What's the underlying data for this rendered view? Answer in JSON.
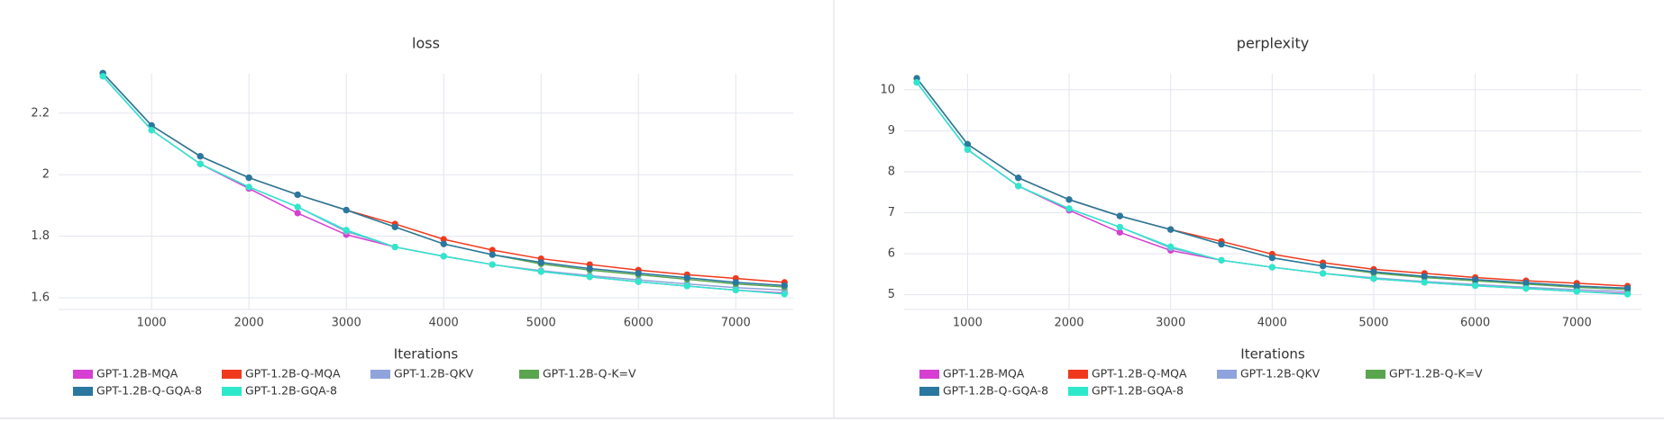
{
  "chart_data": [
    {
      "type": "line",
      "title": "loss",
      "x_label": "Iterations",
      "x": [
        500,
        1000,
        1500,
        2000,
        2500,
        3000,
        3500,
        4000,
        4500,
        5000,
        5500,
        6000,
        6500,
        7000,
        7500
      ],
      "xlim": [
        45,
        7590
      ],
      "ylim": [
        1.562,
        2.328
      ],
      "xticks": [
        1000,
        2000,
        3000,
        4000,
        5000,
        6000,
        7000
      ],
      "yticks": [
        1.6,
        1.8,
        2,
        2.2
      ],
      "grid": true,
      "series": [
        {
          "name": "GPT-1.2B-MQA",
          "color": "#d63fd1",
          "values": [
            2.32,
            2.145,
            2.035,
            1.955,
            1.875,
            1.805,
            1.765,
            1.735,
            1.708,
            1.685,
            1.668,
            1.652,
            1.638,
            1.625,
            1.615
          ]
        },
        {
          "name": "GPT-1.2B-Q-MQA",
          "color": "#f0391c",
          "values": [
            2.33,
            2.16,
            2.06,
            1.99,
            1.935,
            1.885,
            1.84,
            1.79,
            1.755,
            1.727,
            1.708,
            1.69,
            1.675,
            1.663,
            1.65
          ]
        },
        {
          "name": "GPT-1.2B-QKV",
          "color": "#8fa4dc",
          "values": [
            2.32,
            2.145,
            2.035,
            1.96,
            1.895,
            1.815,
            1.765,
            1.735,
            1.708,
            1.688,
            1.672,
            1.658,
            1.645,
            1.633,
            1.625
          ]
        },
        {
          "name": "GPT-1.2B-Q-K=V",
          "color": "#5aa64f",
          "values": [
            2.33,
            2.16,
            2.06,
            1.99,
            1.935,
            1.885,
            1.83,
            1.775,
            1.74,
            1.71,
            1.69,
            1.675,
            1.66,
            1.645,
            1.635
          ]
        },
        {
          "name": "GPT-1.2B-Q-GQA-8",
          "color": "#2a77a0",
          "values": [
            2.33,
            2.16,
            2.06,
            1.99,
            1.935,
            1.885,
            1.83,
            1.775,
            1.74,
            1.715,
            1.695,
            1.68,
            1.665,
            1.65,
            1.64
          ]
        },
        {
          "name": "GPT-1.2B-GQA-8",
          "color": "#2ee8cc",
          "values": [
            2.32,
            2.145,
            2.035,
            1.96,
            1.895,
            1.82,
            1.765,
            1.735,
            1.708,
            1.685,
            1.668,
            1.652,
            1.638,
            1.625,
            1.612
          ]
        }
      ]
    },
    {
      "type": "line",
      "title": "perplexity",
      "x_label": "Iterations",
      "x": [
        500,
        1000,
        1500,
        2000,
        2500,
        3000,
        3500,
        4000,
        4500,
        5000,
        5500,
        6000,
        6500,
        7000,
        7500
      ],
      "xlim": [
        375,
        7637
      ],
      "ylim": [
        4.64,
        10.39
      ],
      "xticks": [
        1000,
        2000,
        3000,
        4000,
        5000,
        6000,
        7000
      ],
      "yticks": [
        5,
        6,
        7,
        8,
        9,
        10
      ],
      "grid": true,
      "series": [
        {
          "name": "GPT-1.2B-MQA",
          "color": "#d63fd1",
          "values": [
            10.18,
            8.54,
            7.65,
            7.06,
            6.52,
            6.08,
            5.84,
            5.67,
            5.52,
            5.39,
            5.3,
            5.22,
            5.15,
            5.08,
            5.03
          ]
        },
        {
          "name": "GPT-1.2B-Q-MQA",
          "color": "#f0391c",
          "values": [
            10.28,
            8.67,
            7.85,
            7.32,
            6.92,
            6.59,
            6.3,
            5.99,
            5.78,
            5.62,
            5.52,
            5.42,
            5.34,
            5.28,
            5.21
          ]
        },
        {
          "name": "GPT-1.2B-QKV",
          "color": "#8fa4dc",
          "values": [
            10.18,
            8.54,
            7.65,
            7.1,
            6.65,
            6.14,
            5.84,
            5.67,
            5.52,
            5.41,
            5.32,
            5.25,
            5.18,
            5.12,
            5.08
          ]
        },
        {
          "name": "GPT-1.2B-Q-K=V",
          "color": "#5aa64f",
          "values": [
            10.28,
            8.67,
            7.85,
            7.32,
            6.92,
            6.59,
            6.23,
            5.9,
            5.7,
            5.53,
            5.42,
            5.34,
            5.26,
            5.18,
            5.13
          ]
        },
        {
          "name": "GPT-1.2B-Q-GQA-8",
          "color": "#2a77a0",
          "values": [
            10.28,
            8.67,
            7.85,
            7.32,
            6.92,
            6.59,
            6.23,
            5.9,
            5.7,
            5.56,
            5.45,
            5.37,
            5.29,
            5.21,
            5.16
          ]
        },
        {
          "name": "GPT-1.2B-GQA-8",
          "color": "#2ee8cc",
          "values": [
            10.18,
            8.54,
            7.65,
            7.1,
            6.65,
            6.17,
            5.84,
            5.67,
            5.52,
            5.39,
            5.3,
            5.22,
            5.15,
            5.08,
            5.01
          ]
        }
      ]
    }
  ]
}
